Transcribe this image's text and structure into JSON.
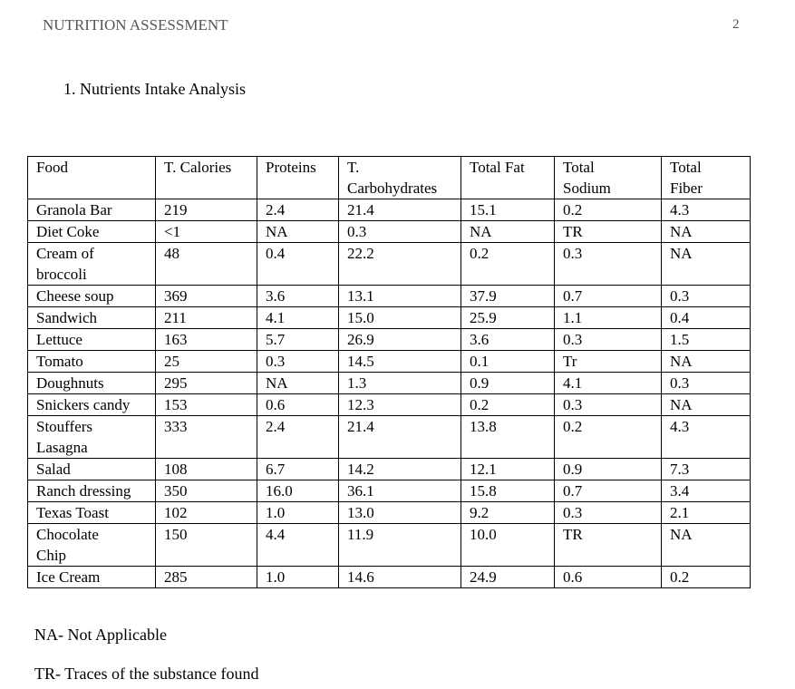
{
  "header": {
    "title": "NUTRITION ASSESSMENT",
    "page": "2"
  },
  "section": {
    "heading": "1.   Nutrients Intake Analysis"
  },
  "table": {
    "header": [
      "Food",
      "T. Calories",
      "Proteins",
      "T. Carbohydrates",
      "Total Fat",
      "Total Sodium",
      "Total Fiber"
    ],
    "rows": [
      [
        "Granola Bar",
        "219",
        "2.4",
        "21.4",
        "15.1",
        "0.2",
        "4.3"
      ],
      [
        "Diet Coke",
        "<1",
        "NA",
        "0.3",
        "NA",
        "TR",
        "NA"
      ],
      [
        "Cream of broccoli",
        "48",
        "0.4",
        "22.2",
        "0.2",
        "0.3",
        "NA"
      ],
      [
        "Cheese soup",
        "369",
        "3.6",
        "13.1",
        "37.9",
        "0.7",
        "0.3"
      ],
      [
        "Sandwich",
        "211",
        "4.1",
        "15.0",
        "25.9",
        "1.1",
        "0.4"
      ],
      [
        "Lettuce",
        "163",
        "5.7",
        "26.9",
        "3.6",
        "0.3",
        "1.5"
      ],
      [
        "Tomato",
        "25",
        "0.3",
        "14.5",
        "0.1",
        "Tr",
        "NA"
      ],
      [
        "Doughnuts",
        "295",
        "NA",
        "1.3",
        "0.9",
        "4.1",
        "0.3"
      ],
      [
        "Snickers candy",
        "153",
        "0.6",
        "12.3",
        "0.2",
        "0.3",
        "NA"
      ],
      [
        "Stouffers Lasagna",
        "333",
        "2.4",
        "21.4",
        "13.8",
        "0.2",
        "4.3"
      ],
      [
        "Salad",
        "108",
        "6.7",
        "14.2",
        "12.1",
        "0.9",
        "7.3"
      ],
      [
        "Ranch dressing",
        "350",
        "16.0",
        "36.1",
        "15.8",
        "0.7",
        "3.4"
      ],
      [
        "Texas Toast",
        "102",
        "1.0",
        "13.0",
        "9.2",
        "0.3",
        "2.1"
      ],
      [
        "Chocolate Chip",
        "150",
        "4.4",
        "11.9",
        "10.0",
        "TR",
        "NA"
      ],
      [
        "Ice Cream",
        "285",
        "1.0",
        "14.6",
        "24.9",
        "0.6",
        "0.2"
      ]
    ]
  },
  "notes": [
    "NA- Not Applicable",
    "TR- Traces of the substance found"
  ]
}
